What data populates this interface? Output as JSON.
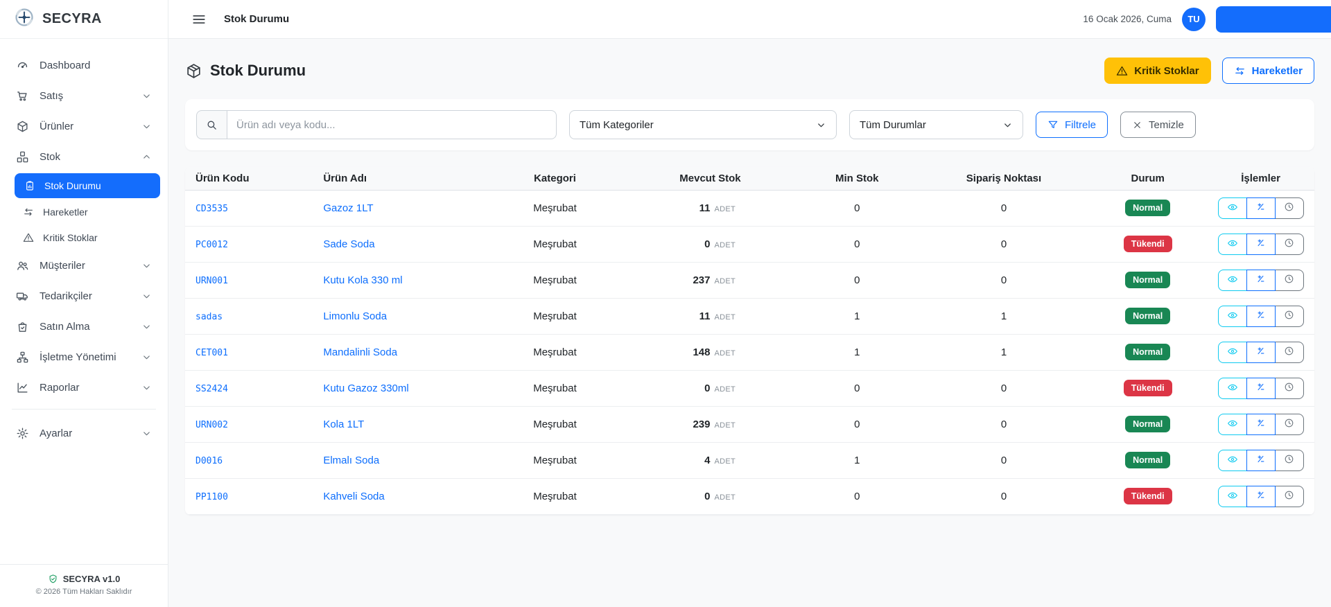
{
  "brand": {
    "name": "SECYRA",
    "version_label": "SECYRA v1.0",
    "copyright": "© 2026 Tüm Hakları Saklıdır"
  },
  "topbar": {
    "title": "Stok Durumu",
    "date": "16 Ocak 2026, Cuma",
    "avatar_initials": "TU"
  },
  "sidebar": {
    "items": [
      {
        "key": "dashboard",
        "label": "Dashboard",
        "icon": "gauge-icon",
        "expandable": false
      },
      {
        "key": "satis",
        "label": "Satış",
        "icon": "cart-icon",
        "expandable": true
      },
      {
        "key": "urunler",
        "label": "Ürünler",
        "icon": "box-icon",
        "expandable": true
      },
      {
        "key": "stok",
        "label": "Stok",
        "icon": "cubes-icon",
        "expandable": true,
        "expanded": true,
        "children": [
          {
            "key": "stok-durumu",
            "label": "Stok Durumu",
            "icon": "clipboard-chart-icon",
            "active": true
          },
          {
            "key": "hareketler",
            "label": "Hareketler",
            "icon": "transfer-icon",
            "active": false
          },
          {
            "key": "kritik-stoklar",
            "label": "Kritik Stoklar",
            "icon": "warning-icon",
            "active": false
          }
        ]
      },
      {
        "key": "musteriler",
        "label": "Müşteriler",
        "icon": "users-icon",
        "expandable": true
      },
      {
        "key": "tedarikciler",
        "label": "Tedarikçiler",
        "icon": "truck-icon",
        "expandable": true
      },
      {
        "key": "satin-alma",
        "label": "Satın Alma",
        "icon": "bag-check-icon",
        "expandable": true
      },
      {
        "key": "isletme-yonetimi",
        "label": "İşletme Yönetimi",
        "icon": "org-chart-icon",
        "expandable": true
      },
      {
        "key": "raporlar",
        "label": "Raporlar",
        "icon": "chart-line-icon",
        "expandable": true
      },
      {
        "key": "ayarlar",
        "label": "Ayarlar",
        "icon": "gear-icon",
        "expandable": true,
        "separated": true
      }
    ]
  },
  "page": {
    "title": "Stok Durumu",
    "critical_button": "Kritik Stoklar",
    "movements_button": "Hareketler"
  },
  "filters": {
    "search_placeholder": "Ürün adı veya kodu...",
    "category_selected": "Tüm Kategoriler",
    "status_selected": "Tüm Durumlar",
    "filter_label": "Filtrele",
    "clear_label": "Temizle"
  },
  "table": {
    "columns": [
      "Ürün Kodu",
      "Ürün Adı",
      "Kategori",
      "Mevcut Stok",
      "Min Stok",
      "Sipariş Noktası",
      "Durum",
      "İşlemler"
    ],
    "unit_label": "ADET",
    "status_colors": {
      "Normal": "#198754",
      "Tükendi": "#dc3545"
    },
    "rows": [
      {
        "code": "CD3535",
        "name": "Gazoz 1LT",
        "category": "Meşrubat",
        "stock": "11",
        "min": "0",
        "reorder": "0",
        "status": "Normal"
      },
      {
        "code": "PC0012",
        "name": "Sade Soda",
        "category": "Meşrubat",
        "stock": "0",
        "min": "0",
        "reorder": "0",
        "status": "Tükendi"
      },
      {
        "code": "URN001",
        "name": "Kutu Kola 330 ml",
        "category": "Meşrubat",
        "stock": "237",
        "min": "0",
        "reorder": "0",
        "status": "Normal"
      },
      {
        "code": "sadas",
        "name": "Limonlu Soda",
        "category": "Meşrubat",
        "stock": "11",
        "min": "1",
        "reorder": "1",
        "status": "Normal"
      },
      {
        "code": "CET001",
        "name": "Mandalinli Soda",
        "category": "Meşrubat",
        "stock": "148",
        "min": "1",
        "reorder": "1",
        "status": "Normal"
      },
      {
        "code": "SS2424",
        "name": "Kutu Gazoz 330ml",
        "category": "Meşrubat",
        "stock": "0",
        "min": "0",
        "reorder": "0",
        "status": "Tükendi"
      },
      {
        "code": "URN002",
        "name": "Kola 1LT",
        "category": "Meşrubat",
        "stock": "239",
        "min": "0",
        "reorder": "0",
        "status": "Normal"
      },
      {
        "code": "D0016",
        "name": "Elmalı Soda",
        "category": "Meşrubat",
        "stock": "4",
        "min": "1",
        "reorder": "0",
        "status": "Normal"
      },
      {
        "code": "PP1100",
        "name": "Kahveli Soda",
        "category": "Meşrubat",
        "stock": "0",
        "min": "0",
        "reorder": "0",
        "status": "Tükendi"
      }
    ]
  }
}
